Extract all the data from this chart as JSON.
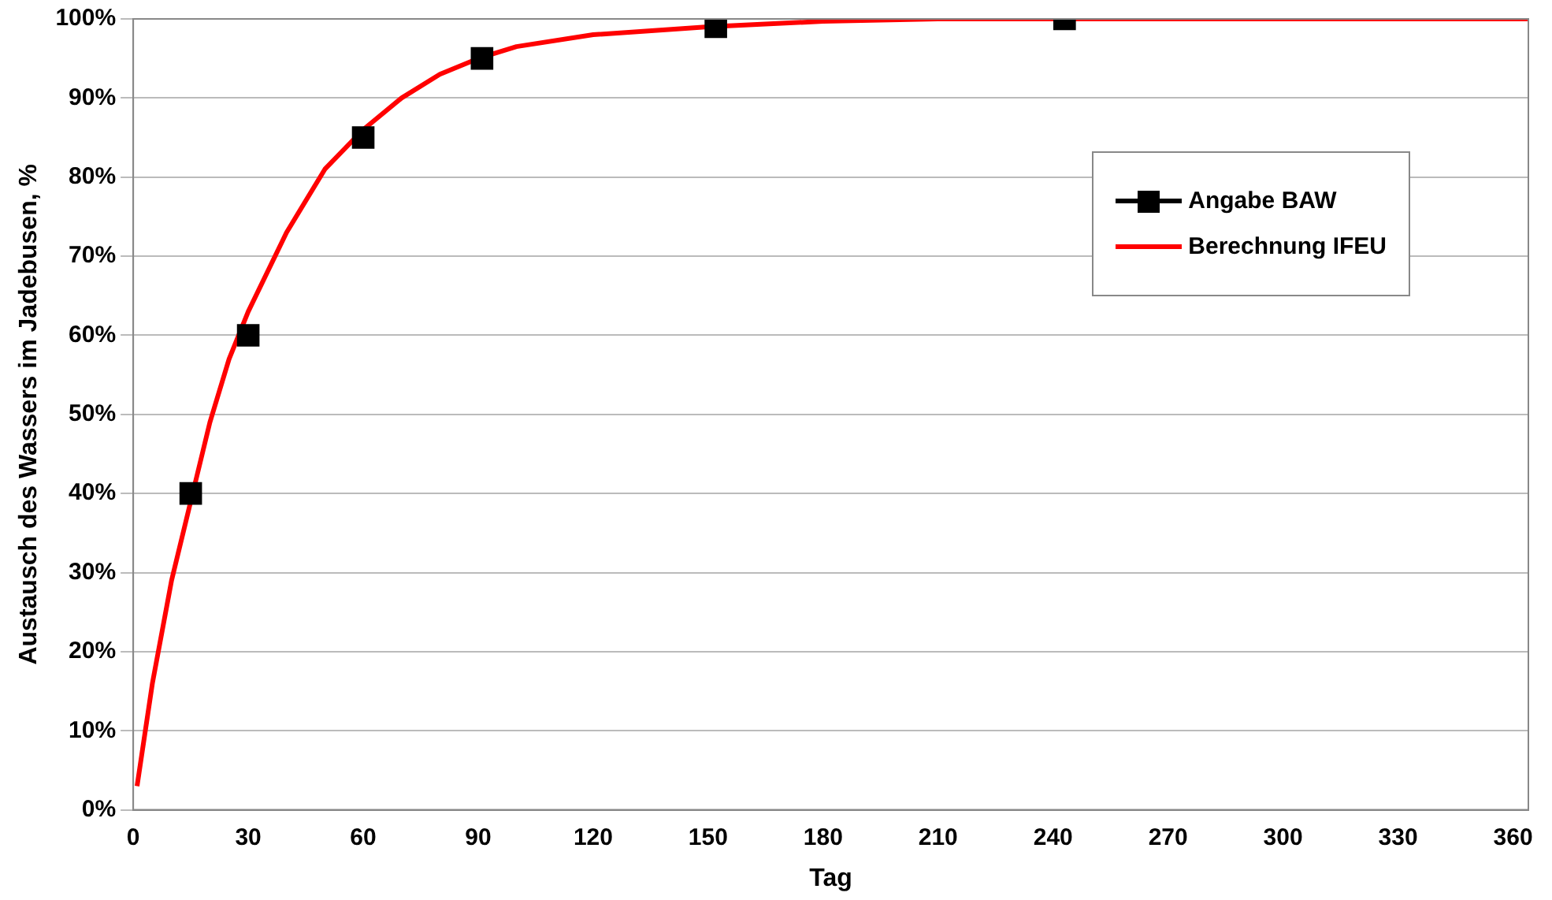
{
  "chart_data": {
    "type": "line",
    "xlabel": "Tag",
    "ylabel": "Austausch des Wassers im Jadebusen, %",
    "xlim": [
      0,
      364
    ],
    "xticks": [
      0,
      30,
      60,
      90,
      120,
      150,
      180,
      210,
      240,
      270,
      300,
      330,
      360
    ],
    "ylim": [
      0,
      100
    ],
    "yticks": [
      {
        "value": 0,
        "label": "0%"
      },
      {
        "value": 10,
        "label": "10%"
      },
      {
        "value": 20,
        "label": "20%"
      },
      {
        "value": 30,
        "label": "30%"
      },
      {
        "value": 40,
        "label": "40%"
      },
      {
        "value": 50,
        "label": "50%"
      },
      {
        "value": 60,
        "label": "60%"
      },
      {
        "value": 70,
        "label": "70%"
      },
      {
        "value": 80,
        "label": "80%"
      },
      {
        "value": 90,
        "label": "90%"
      },
      {
        "value": 100,
        "label": "100%"
      }
    ],
    "grid": "y",
    "legend": "top right",
    "series": [
      {
        "name": "Angabe BAW",
        "type": "scatter",
        "color": "#000000",
        "marker": "square",
        "x": [
          15,
          30,
          60,
          91,
          152,
          243
        ],
        "values": [
          40,
          60,
          85,
          95,
          99,
          100
        ]
      },
      {
        "name": "Berechnung IFEU",
        "color": "#ff0000",
        "marker": "none",
        "x": [
          1,
          5,
          10,
          20,
          25,
          30,
          40,
          50,
          60,
          70,
          80,
          90,
          100,
          120,
          150,
          180,
          210,
          270,
          364
        ],
        "values": [
          3,
          16,
          29,
          49,
          57,
          63,
          73,
          81,
          86,
          90,
          93,
          95,
          96.5,
          98,
          99,
          99.7,
          100,
          100,
          100
        ]
      }
    ]
  }
}
